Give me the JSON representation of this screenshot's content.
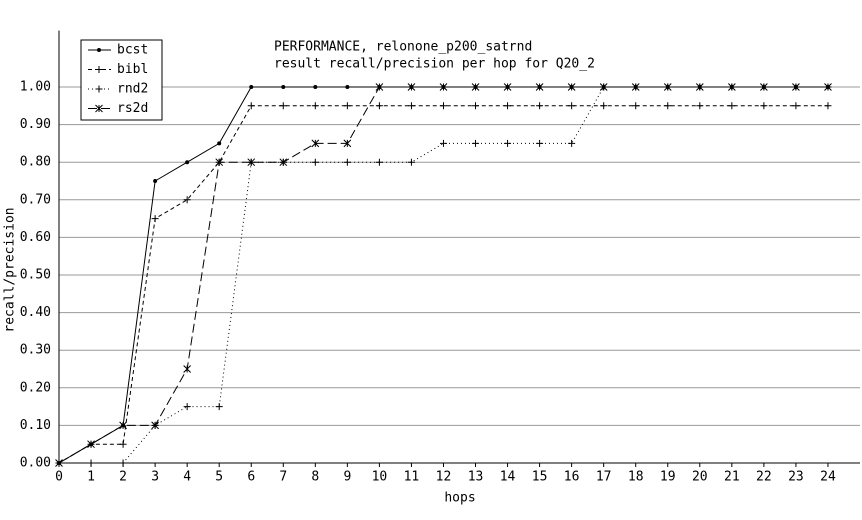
{
  "chart_data": {
    "type": "line",
    "title": "PERFORMANCE, relonone_p200_satrnd",
    "subtitle": "result recall/precision per hop for Q20_2",
    "x_label": "hops",
    "y_label": "recall/precision",
    "x": [
      0,
      1,
      2,
      3,
      4,
      5,
      6,
      7,
      8,
      9,
      10,
      11,
      12,
      13,
      14,
      15,
      16,
      17,
      18,
      19,
      20,
      21,
      22,
      23,
      24
    ],
    "series": [
      {
        "name": "bcst",
        "color": "#000000",
        "linestyle": "solid",
        "marker": "dot",
        "values": [
          0,
          0.05,
          0.1,
          0.75,
          0.8,
          0.85,
          1,
          1,
          1,
          1,
          1,
          1,
          1,
          1,
          1,
          1,
          1,
          1,
          1,
          1,
          1,
          1,
          1,
          1,
          1
        ]
      },
      {
        "name": "bibl",
        "color": "#000000",
        "linestyle": "dashed",
        "marker": "plus",
        "values": [
          0,
          0.05,
          0.05,
          0.65,
          0.7,
          0.8,
          0.95,
          0.95,
          0.95,
          0.95,
          0.95,
          0.95,
          0.95,
          0.95,
          0.95,
          0.95,
          0.95,
          0.95,
          0.95,
          0.95,
          0.95,
          0.95,
          0.95,
          0.95,
          0.95
        ]
      },
      {
        "name": "rnd2",
        "color": "#000000",
        "linestyle": "dotted",
        "marker": "plus",
        "values": [
          0,
          0,
          0,
          0.1,
          0.15,
          0.15,
          0.8,
          0.8,
          0.8,
          0.8,
          0.8,
          0.8,
          0.85,
          0.85,
          0.85,
          0.85,
          0.85,
          1,
          1,
          1,
          1,
          1,
          1,
          1,
          1
        ]
      },
      {
        "name": "rs2d",
        "color": "#000000",
        "linestyle": "longdash",
        "marker": "star",
        "values": [
          0,
          0.05,
          0.1,
          0.1,
          0.25,
          0.8,
          0.8,
          0.8,
          0.85,
          0.85,
          1,
          1,
          1,
          1,
          1,
          1,
          1,
          1,
          1,
          1,
          1,
          1,
          1,
          1,
          1
        ]
      }
    ],
    "xlim": [
      0,
      25
    ],
    "ylim": [
      0,
      1.15
    ],
    "xticks": [
      0,
      1,
      2,
      3,
      4,
      5,
      6,
      7,
      8,
      9,
      10,
      11,
      12,
      13,
      14,
      15,
      16,
      17,
      18,
      19,
      20,
      21,
      22,
      23,
      24
    ],
    "yticks": [
      {
        "value": 0,
        "label": "0.00"
      },
      {
        "value": 0.1,
        "label": "0.10"
      },
      {
        "value": 0.2,
        "label": "0.20"
      },
      {
        "value": 0.3,
        "label": "0.30"
      },
      {
        "value": 0.4,
        "label": "0.40"
      },
      {
        "value": 0.5,
        "label": "0.50"
      },
      {
        "value": 0.6,
        "label": "0.60"
      },
      {
        "value": 0.7,
        "label": "0.70"
      },
      {
        "value": 0.8,
        "label": "0.80"
      },
      {
        "value": 0.9,
        "label": "0.90"
      },
      {
        "value": 1,
        "label": "1.00"
      }
    ],
    "grid": true,
    "legend": "top-left"
  }
}
